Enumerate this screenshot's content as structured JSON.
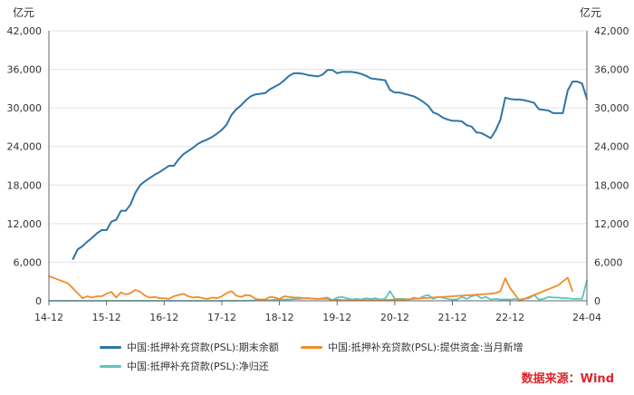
{
  "chart_data": {
    "type": "line",
    "unit_left": "亿元",
    "unit_right": "亿元",
    "ylim": [
      0,
      42000
    ],
    "yticks": [
      "0",
      "6,000",
      "12,000",
      "18,000",
      "24,000",
      "30,000",
      "36,000",
      "42,000"
    ],
    "ytick_values": [
      0,
      6000,
      12000,
      18000,
      24000,
      30000,
      36000,
      42000
    ],
    "xticks": [
      "14-12",
      "15-12",
      "16-12",
      "17-12",
      "18-12",
      "19-12",
      "20-12",
      "21-12",
      "22-12",
      "24-04"
    ],
    "xtick_months": [
      0,
      12,
      24,
      36,
      48,
      60,
      72,
      84,
      96,
      112
    ],
    "x_start": "2014-12",
    "x_end": "2024-04",
    "series": [
      {
        "name": "中国:抵押补充贷款(PSL):期末余额",
        "color": "#2e75a6",
        "points": [
          [
            5,
            6500
          ],
          [
            6,
            8000
          ],
          [
            7,
            8500
          ],
          [
            8,
            9200
          ],
          [
            9,
            9800
          ],
          [
            10,
            10500
          ],
          [
            11,
            11000
          ],
          [
            12,
            11000
          ],
          [
            13,
            12300
          ],
          [
            14,
            12600
          ],
          [
            15,
            14000
          ],
          [
            16,
            14000
          ],
          [
            17,
            15000
          ],
          [
            18,
            16800
          ],
          [
            19,
            18000
          ],
          [
            20,
            18600
          ],
          [
            21,
            19100
          ],
          [
            22,
            19600
          ],
          [
            23,
            20000
          ],
          [
            24,
            20500
          ],
          [
            25,
            21000
          ],
          [
            26,
            21000
          ],
          [
            27,
            22000
          ],
          [
            28,
            22800
          ],
          [
            29,
            23300
          ],
          [
            30,
            23800
          ],
          [
            31,
            24400
          ],
          [
            32,
            24800
          ],
          [
            33,
            25100
          ],
          [
            34,
            25500
          ],
          [
            35,
            26000
          ],
          [
            36,
            26600
          ],
          [
            37,
            27400
          ],
          [
            38,
            28900
          ],
          [
            39,
            29800
          ],
          [
            40,
            30400
          ],
          [
            41,
            31200
          ],
          [
            42,
            31800
          ],
          [
            43,
            32100
          ],
          [
            44,
            32200
          ],
          [
            45,
            32300
          ],
          [
            46,
            32900
          ],
          [
            47,
            33300
          ],
          [
            48,
            33700
          ],
          [
            49,
            34300
          ],
          [
            50,
            35000
          ],
          [
            51,
            35400
          ],
          [
            52,
            35400
          ],
          [
            53,
            35300
          ],
          [
            54,
            35100
          ],
          [
            55,
            35000
          ],
          [
            56,
            34900
          ],
          [
            57,
            35200
          ],
          [
            58,
            35900
          ],
          [
            59,
            35900
          ],
          [
            60,
            35400
          ],
          [
            61,
            35600
          ],
          [
            62,
            35600
          ],
          [
            63,
            35600
          ],
          [
            64,
            35500
          ],
          [
            65,
            35300
          ],
          [
            66,
            35000
          ],
          [
            67,
            34600
          ],
          [
            68,
            34500
          ],
          [
            69,
            34400
          ],
          [
            70,
            34300
          ],
          [
            71,
            32800
          ],
          [
            72,
            32400
          ],
          [
            73,
            32400
          ],
          [
            74,
            32200
          ],
          [
            75,
            32000
          ],
          [
            76,
            31800
          ],
          [
            77,
            31400
          ],
          [
            78,
            30900
          ],
          [
            79,
            30300
          ],
          [
            80,
            29300
          ],
          [
            81,
            29000
          ],
          [
            82,
            28500
          ],
          [
            83,
            28200
          ],
          [
            84,
            28000
          ],
          [
            85,
            28000
          ],
          [
            86,
            27900
          ],
          [
            87,
            27300
          ],
          [
            88,
            27100
          ],
          [
            89,
            26200
          ],
          [
            90,
            26100
          ],
          [
            91,
            25700
          ],
          [
            92,
            25300
          ],
          [
            93,
            26500
          ],
          [
            94,
            28200
          ],
          [
            95,
            31600
          ],
          [
            96,
            31400
          ],
          [
            97,
            31300
          ],
          [
            98,
            31300
          ],
          [
            99,
            31200
          ],
          [
            100,
            31000
          ],
          [
            101,
            30800
          ],
          [
            102,
            29800
          ],
          [
            103,
            29700
          ],
          [
            104,
            29600
          ],
          [
            105,
            29200
          ],
          [
            106,
            29200
          ],
          [
            107,
            29200
          ],
          [
            108,
            32700
          ],
          [
            109,
            34100
          ],
          [
            110,
            34100
          ],
          [
            111,
            33800
          ],
          [
            112,
            31400
          ]
        ]
      },
      {
        "name": "中国:抵押补充贷款(PSL):提供资金:当月新增",
        "color": "#f28c28",
        "points": [
          [
            0,
            3830
          ],
          [
            4,
            2700
          ],
          [
            7,
            400
          ],
          [
            8,
            700
          ],
          [
            9,
            500
          ],
          [
            10,
            700
          ],
          [
            11,
            700
          ],
          [
            12,
            1100
          ],
          [
            13,
            1400
          ],
          [
            14,
            500
          ],
          [
            15,
            1300
          ],
          [
            16,
            1000
          ],
          [
            17,
            1200
          ],
          [
            18,
            1700
          ],
          [
            19,
            1400
          ],
          [
            20,
            800
          ],
          [
            21,
            500
          ],
          [
            22,
            600
          ],
          [
            23,
            400
          ],
          [
            24,
            400
          ],
          [
            25,
            300
          ],
          [
            26,
            700
          ],
          [
            27,
            900
          ],
          [
            28,
            1100
          ],
          [
            29,
            700
          ],
          [
            30,
            500
          ],
          [
            31,
            600
          ],
          [
            32,
            400
          ],
          [
            33,
            300
          ],
          [
            34,
            500
          ],
          [
            35,
            400
          ],
          [
            36,
            700
          ],
          [
            37,
            1200
          ],
          [
            38,
            1500
          ],
          [
            39,
            800
          ],
          [
            40,
            600
          ],
          [
            41,
            900
          ],
          [
            42,
            800
          ],
          [
            43,
            300
          ],
          [
            44,
            200
          ],
          [
            45,
            200
          ],
          [
            46,
            600
          ],
          [
            47,
            500
          ],
          [
            48,
            300
          ],
          [
            49,
            700
          ],
          [
            50,
            600
          ],
          [
            51,
            500
          ],
          [
            52,
            500
          ],
          [
            53,
            400
          ],
          [
            54,
            400
          ],
          [
            55,
            300
          ],
          [
            56,
            300
          ],
          [
            57,
            300
          ],
          [
            58,
            300
          ],
          [
            59,
            100
          ],
          [
            60,
            200
          ],
          [
            61,
            100
          ],
          [
            62,
            100
          ],
          [
            63,
            100
          ],
          [
            64,
            100
          ],
          [
            65,
            200
          ],
          [
            66,
            100
          ],
          [
            67,
            100
          ],
          [
            68,
            100
          ],
          [
            70,
            100
          ],
          [
            72,
            200
          ],
          [
            74,
            200
          ],
          [
            76,
            300
          ],
          [
            78,
            400
          ],
          [
            80,
            500
          ],
          [
            82,
            600
          ],
          [
            84,
            700
          ],
          [
            86,
            800
          ],
          [
            88,
            900
          ],
          [
            90,
            1000
          ],
          [
            92,
            1100
          ],
          [
            93,
            1200
          ],
          [
            94,
            1500
          ],
          [
            95,
            3500
          ],
          [
            96,
            2000
          ],
          [
            98,
            0
          ],
          [
            100,
            600
          ],
          [
            102,
            1200
          ],
          [
            104,
            1800
          ],
          [
            106,
            2400
          ],
          [
            108,
            3600
          ],
          [
            109,
            1500
          ]
        ]
      },
      {
        "name": "中国:抵押补充贷款(PSL):净归还",
        "color": "#5fc4c4",
        "points": [
          [
            0,
            0
          ],
          [
            10,
            0
          ],
          [
            20,
            0
          ],
          [
            30,
            0
          ],
          [
            40,
            0
          ],
          [
            46,
            100
          ],
          [
            48,
            200
          ],
          [
            50,
            200
          ],
          [
            52,
            300
          ],
          [
            54,
            400
          ],
          [
            56,
            300
          ],
          [
            58,
            500
          ],
          [
            59,
            100
          ],
          [
            60,
            500
          ],
          [
            61,
            600
          ],
          [
            62,
            400
          ],
          [
            63,
            200
          ],
          [
            64,
            300
          ],
          [
            65,
            200
          ],
          [
            66,
            400
          ],
          [
            67,
            300
          ],
          [
            68,
            400
          ],
          [
            69,
            200
          ],
          [
            70,
            300
          ],
          [
            71,
            1500
          ],
          [
            72,
            300
          ],
          [
            73,
            300
          ],
          [
            74,
            300
          ],
          [
            75,
            200
          ],
          [
            76,
            500
          ],
          [
            77,
            300
          ],
          [
            78,
            700
          ],
          [
            79,
            900
          ],
          [
            80,
            300
          ],
          [
            81,
            600
          ],
          [
            82,
            500
          ],
          [
            83,
            300
          ],
          [
            84,
            200
          ],
          [
            85,
            200
          ],
          [
            86,
            600
          ],
          [
            87,
            300
          ],
          [
            88,
            700
          ],
          [
            89,
            900
          ],
          [
            90,
            400
          ],
          [
            91,
            600
          ],
          [
            92,
            200
          ],
          [
            93,
            300
          ],
          [
            94,
            200
          ],
          [
            95,
            200
          ],
          [
            96,
            200
          ],
          [
            97,
            300
          ],
          [
            98,
            200
          ],
          [
            99,
            300
          ],
          [
            100,
            400
          ],
          [
            101,
            900
          ],
          [
            102,
            200
          ],
          [
            103,
            300
          ],
          [
            104,
            600
          ],
          [
            105,
            500
          ],
          [
            106,
            500
          ],
          [
            107,
            400
          ],
          [
            108,
            400
          ],
          [
            109,
            300
          ],
          [
            110,
            300
          ],
          [
            111,
            300
          ],
          [
            112,
            3200
          ]
        ]
      }
    ]
  },
  "source": "数据来源：Wind"
}
